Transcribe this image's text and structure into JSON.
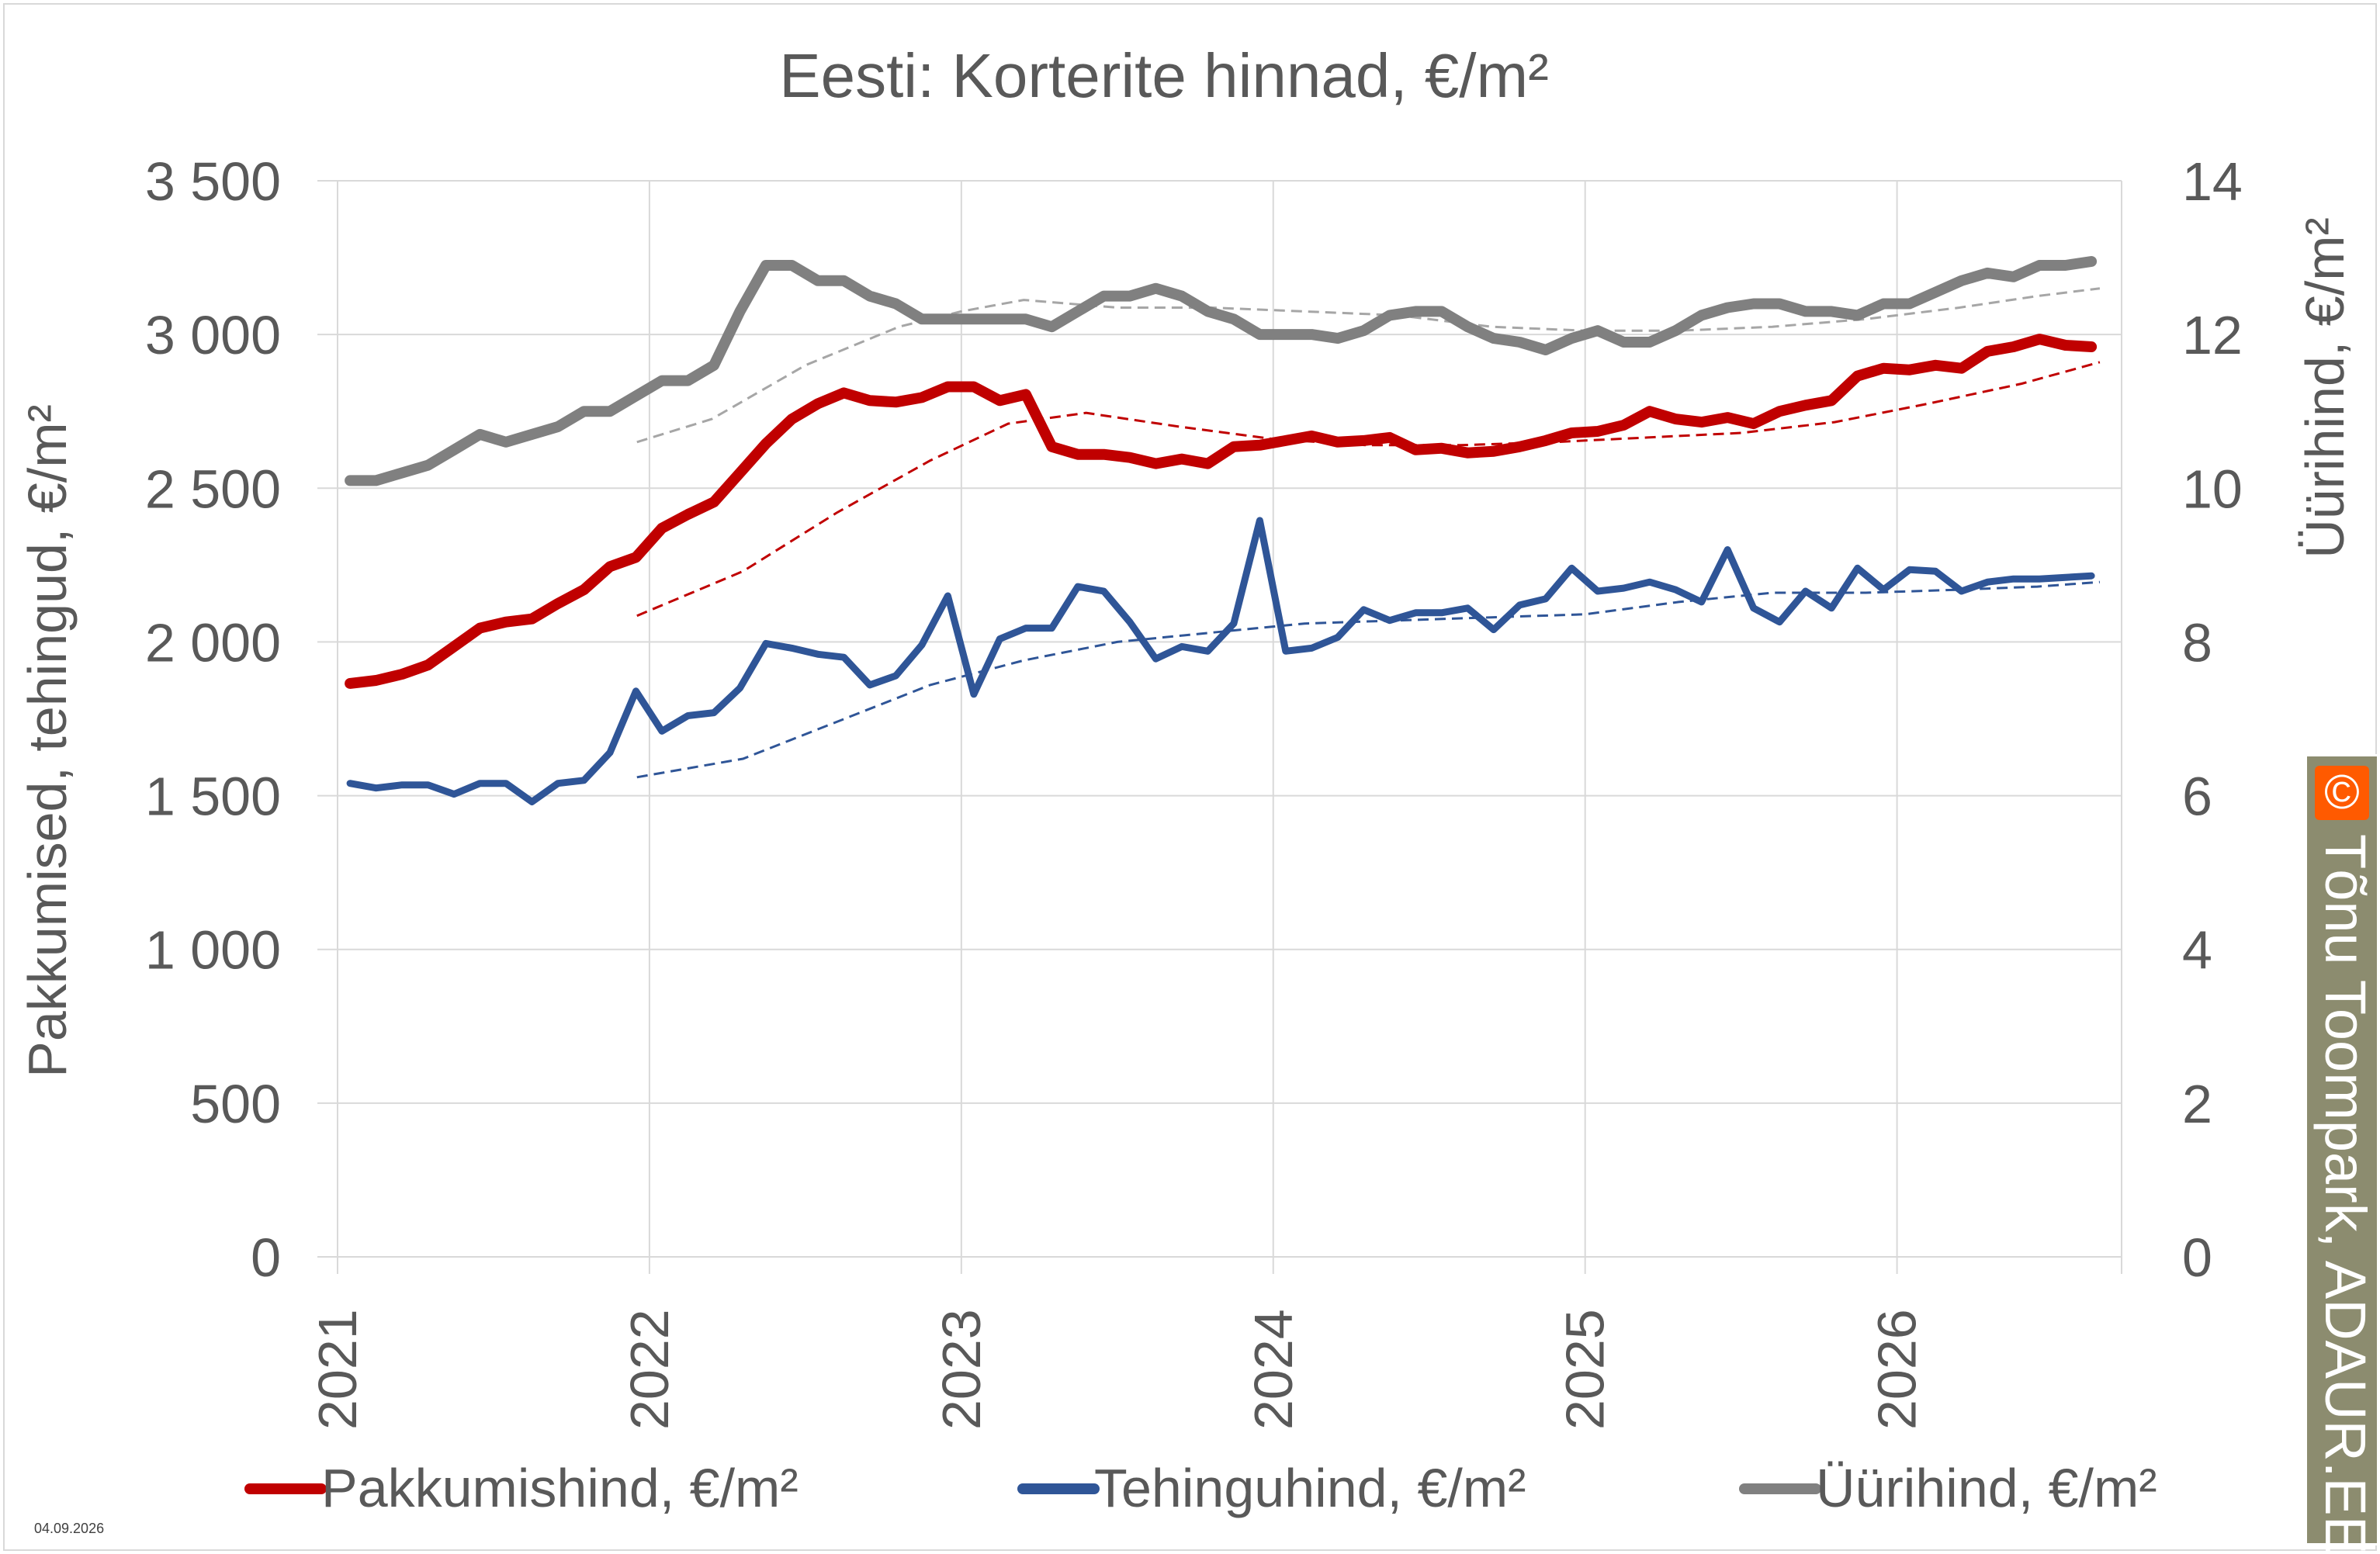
{
  "chart_data": {
    "type": "line",
    "title": "Eesti: Korterite hinnad, €/m²",
    "ylabel": "Pakkumised, tehingud, €/m²",
    "y2label": "Üürihind, €/m²",
    "ylim": [
      0,
      3500
    ],
    "y2lim": [
      0,
      14
    ],
    "yticks": [
      0,
      500,
      1000,
      1500,
      2000,
      2500,
      3000,
      3500
    ],
    "ytick_labels": [
      "0",
      "500",
      "1 000",
      "1 500",
      "2 000",
      "2 500",
      "3 000",
      "3 500"
    ],
    "y2ticks": [
      0,
      2,
      4,
      6,
      8,
      10,
      12,
      14
    ],
    "y2tick_labels": [
      "0",
      "2",
      "4",
      "6",
      "8",
      "10",
      "12",
      "14"
    ],
    "xticks": [
      2021,
      2022,
      2023,
      2024,
      2025,
      2026
    ],
    "xtick_labels": [
      "2021",
      "2022",
      "2023",
      "2024",
      "2025",
      "2026"
    ],
    "xlim": [
      2021.0,
      2026.72
    ],
    "grid": true,
    "legend_position": "bottom",
    "series": [
      {
        "name": "Pakkumishind, €/m²",
        "axis": "left",
        "color": "#c00000",
        "x_start": 2021.04,
        "x_step": 0.0833333,
        "values": [
          1865,
          1875,
          1895,
          1925,
          1985,
          2045,
          2065,
          2075,
          2125,
          2170,
          2245,
          2275,
          2370,
          2415,
          2455,
          2550,
          2645,
          2725,
          2775,
          2810,
          2785,
          2780,
          2795,
          2830,
          2830,
          2785,
          2805,
          2635,
          2610,
          2610,
          2600,
          2580,
          2595,
          2580,
          2635,
          2640,
          2655,
          2670,
          2650,
          2655,
          2665,
          2625,
          2630,
          2615,
          2620,
          2635,
          2655,
          2680,
          2685,
          2705,
          2750,
          2725,
          2715,
          2730,
          2710,
          2750,
          2770,
          2785,
          2865,
          2890,
          2885,
          2900,
          2890,
          2945,
          2960,
          2985,
          2965,
          2960
        ]
      },
      {
        "name": "Tehinguhind, €/m²",
        "axis": "left",
        "color": "#2f5597",
        "x_start": 2021.04,
        "x_step": 0.0833333,
        "values": [
          1540,
          1525,
          1535,
          1535,
          1505,
          1540,
          1540,
          1480,
          1540,
          1550,
          1640,
          1840,
          1710,
          1760,
          1770,
          1850,
          1995,
          1980,
          1960,
          1950,
          1860,
          1890,
          1990,
          2150,
          1830,
          2010,
          2045,
          2045,
          2180,
          2165,
          2065,
          1945,
          1985,
          1970,
          2060,
          2395,
          1970,
          1980,
          2015,
          2105,
          2070,
          2095,
          2095,
          2110,
          2040,
          2120,
          2140,
          2240,
          2165,
          2175,
          2195,
          2170,
          2130,
          2300,
          2110,
          2065,
          2165,
          2110,
          2240,
          2170,
          2235,
          2230,
          2165,
          2195,
          2205,
          2205,
          2210,
          2215
        ]
      },
      {
        "name": "Üürihind, €/m²",
        "axis": "right",
        "color": "#808080",
        "x_start": 2021.04,
        "x_step": 0.0833333,
        "values": [
          10.1,
          10.1,
          10.2,
          10.3,
          10.5,
          10.7,
          10.6,
          10.7,
          10.8,
          11.0,
          11.0,
          11.2,
          11.4,
          11.4,
          11.6,
          12.3,
          12.9,
          12.9,
          12.7,
          12.7,
          12.5,
          12.4,
          12.2,
          12.2,
          12.2,
          12.2,
          12.2,
          12.1,
          12.3,
          12.5,
          12.5,
          12.6,
          12.5,
          12.3,
          12.2,
          12.0,
          12.0,
          12.0,
          11.95,
          12.05,
          12.25,
          12.3,
          12.3,
          12.1,
          11.95,
          11.9,
          11.8,
          11.95,
          12.05,
          11.9,
          11.9,
          12.05,
          12.25,
          12.35,
          12.4,
          12.4,
          12.3,
          12.3,
          12.25,
          12.4,
          12.4,
          12.55,
          12.7,
          12.8,
          12.75,
          12.9,
          12.9,
          12.95
        ]
      }
    ],
    "trendlines": [
      {
        "of": "Pakkumishind, €/m²",
        "axis": "left",
        "color": "#c00000",
        "style": "dashed",
        "x": [
          2021.96,
          2022.3,
          2022.6,
          2022.9,
          2023.15,
          2023.4,
          2023.7,
          2024.0,
          2024.3,
          2024.6,
          2024.9,
          2025.2,
          2025.5,
          2025.8,
          2026.1,
          2026.4,
          2026.65
        ],
        "values": [
          2085,
          2230,
          2420,
          2590,
          2710,
          2745,
          2700,
          2660,
          2640,
          2640,
          2650,
          2665,
          2680,
          2715,
          2775,
          2840,
          2910
        ]
      },
      {
        "of": "Tehinguhind, €/m²",
        "axis": "left",
        "color": "#2f5597",
        "style": "dashed",
        "x": [
          2021.96,
          2022.3,
          2022.6,
          2022.9,
          2023.2,
          2023.5,
          2023.8,
          2024.1,
          2024.4,
          2024.7,
          2025.0,
          2025.3,
          2025.6,
          2025.9,
          2026.2,
          2026.45,
          2026.65
        ],
        "values": [
          1560,
          1620,
          1740,
          1860,
          1940,
          2000,
          2030,
          2060,
          2070,
          2080,
          2090,
          2130,
          2160,
          2160,
          2170,
          2180,
          2195
        ]
      },
      {
        "of": "Üürihind, €/m²",
        "axis": "right",
        "color": "#a6a6a6",
        "style": "dashed",
        "x": [
          2021.96,
          2022.2,
          2022.5,
          2022.8,
          2023.0,
          2023.2,
          2023.5,
          2023.8,
          2024.1,
          2024.4,
          2024.7,
          2025.0,
          2025.3,
          2025.6,
          2025.9,
          2026.2,
          2026.45,
          2026.65
        ],
        "values": [
          10.6,
          10.9,
          11.6,
          12.1,
          12.3,
          12.45,
          12.35,
          12.35,
          12.3,
          12.25,
          12.1,
          12.05,
          12.05,
          12.1,
          12.2,
          12.35,
          12.5,
          12.6
        ]
      }
    ]
  },
  "watermark": {
    "symbol": "©",
    "text": "Tõnu Toompark, ADAUR.EE"
  },
  "date_stamp": "04.09.2026"
}
